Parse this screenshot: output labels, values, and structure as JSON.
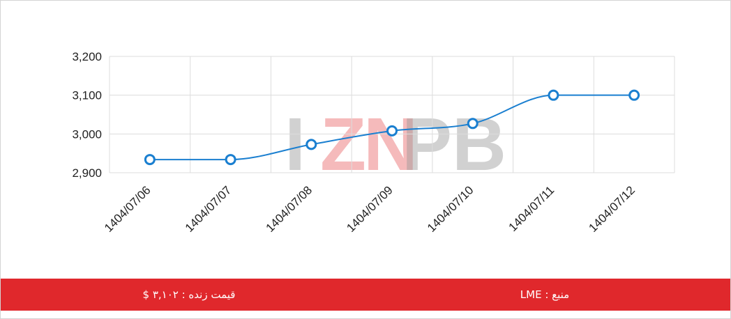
{
  "watermark": {
    "text": "IZNPB"
  },
  "footer": {
    "live_price": "قیمت زنده : ۳,۱۰۲ $",
    "source": "منبع : LME"
  },
  "colors": {
    "line": "#1a7fd0",
    "footer_bg": "#e0282c",
    "grid": "#dcdcdc",
    "watermark_red": "#e0282c",
    "watermark_gray": "#9a9a9a"
  },
  "chart_data": {
    "type": "line",
    "title": "",
    "xlabel": "",
    "ylabel": "",
    "categories": [
      "1404/07/06",
      "1404/07/07",
      "1404/07/08",
      "1404/07/09",
      "1404/07/10",
      "1404/07/11",
      "1404/07/12"
    ],
    "series": [
      {
        "values": [
          2934,
          2934,
          2973,
          3008,
          3027,
          3100,
          3100
        ]
      }
    ],
    "ylim": [
      2900,
      3200
    ],
    "yticks": [
      2900,
      3000,
      3100,
      3200
    ],
    "ytick_labels": [
      "2,900",
      "3,000",
      "3,100",
      "3,200"
    ],
    "grid": true,
    "legend": "none",
    "line_style": "smooth",
    "markers": "hollow-circle"
  }
}
